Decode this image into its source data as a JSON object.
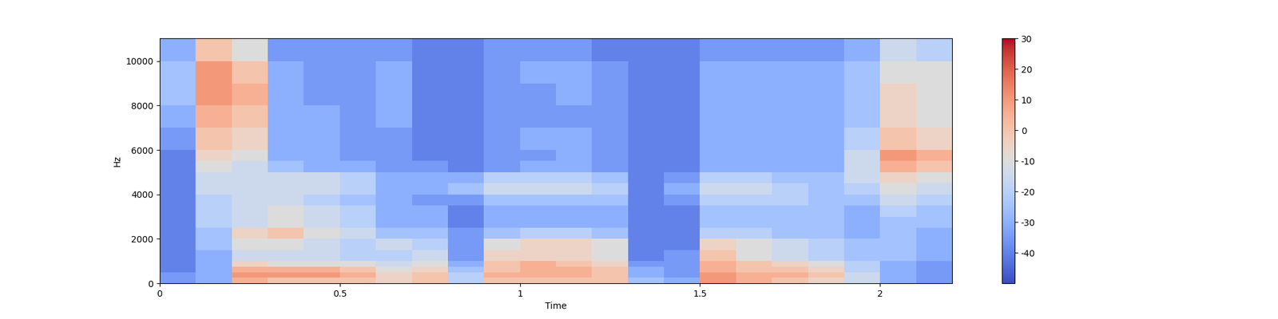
{
  "chart_data": {
    "type": "heatmap",
    "x_label": "Time",
    "y_label": "Hz",
    "xlim": [
      0,
      2.2
    ],
    "xticks": [
      0,
      0.5,
      1,
      1.5,
      2
    ],
    "ylim": [
      0,
      11025
    ],
    "yticks": [
      0,
      2000,
      4000,
      6000,
      8000,
      10000
    ],
    "color": "coolwarm",
    "clim": [
      -50,
      30
    ],
    "cticks": [
      -40,
      -30,
      -20,
      -10,
      0,
      10,
      20,
      30
    ],
    "x_edges": [
      0,
      0.1,
      0.2,
      0.3,
      0.4,
      0.5,
      0.6,
      0.7,
      0.8,
      0.9,
      1.0,
      1.1,
      1.2,
      1.3,
      1.4,
      1.5,
      1.6,
      1.7,
      1.8,
      1.9,
      2.0,
      2.1,
      2.2
    ],
    "y_edges": [
      0,
      250,
      500,
      750,
      1000,
      1500,
      2000,
      2500,
      3000,
      3500,
      4000,
      4500,
      5000,
      5500,
      6000,
      7000,
      8000,
      9000,
      10000,
      11025
    ],
    "cells": [
      [
        -35,
        -35,
        -40,
        -40,
        -40,
        -40,
        -40,
        -40,
        -40,
        -40,
        -40,
        -40,
        -40,
        -40,
        -35,
        -30,
        -25,
        -25,
        -30
      ],
      [
        -30,
        -30,
        -30,
        -30,
        -30,
        -25,
        -25,
        -20,
        -20,
        -20,
        -15,
        -15,
        -10,
        -5,
        0,
        5,
        10,
        10,
        0
      ],
      [
        5,
        10,
        5,
        -5,
        -15,
        -10,
        -5,
        -15,
        -15,
        -15,
        -15,
        -15,
        -15,
        -10,
        -5,
        0,
        5,
        0,
        -10
      ],
      [
        0,
        10,
        5,
        -10,
        -15,
        -10,
        0,
        -10,
        -10,
        -15,
        -15,
        -15,
        -25,
        -30,
        -30,
        -30,
        -30,
        -30,
        -35
      ],
      [
        0,
        10,
        5,
        -10,
        -15,
        -15,
        -10,
        -15,
        -15,
        -20,
        -15,
        -15,
        -30,
        -30,
        -30,
        -30,
        -35,
        -35,
        -35
      ],
      [
        0,
        5,
        0,
        -10,
        -20,
        -20,
        -15,
        -20,
        -20,
        -25,
        -20,
        -20,
        -30,
        -35,
        -35,
        -35,
        -35,
        -35,
        -35
      ],
      [
        -5,
        -5,
        -10,
        -15,
        -20,
        -15,
        -25,
        -30,
        -30,
        -30,
        -30,
        -30,
        -35,
        -35,
        -35,
        -30,
        -30,
        -30,
        -35
      ],
      [
        0,
        0,
        -5,
        -10,
        -15,
        -20,
        -25,
        -30,
        -30,
        -35,
        -30,
        -30,
        -35,
        -40,
        -40,
        -40,
        -40,
        -40,
        -40
      ],
      [
        -20,
        -20,
        -25,
        -30,
        -35,
        -35,
        -35,
        -40,
        -40,
        -35,
        -25,
        -30,
        -40,
        -40,
        -40,
        -40,
        -40,
        -40,
        -40
      ],
      [
        0,
        5,
        0,
        0,
        -5,
        -10,
        -25,
        -30,
        -30,
        -25,
        -15,
        -20,
        -35,
        -35,
        -35,
        -35,
        -35,
        -35,
        -35
      ],
      [
        0,
        5,
        5,
        5,
        -5,
        -5,
        -20,
        -30,
        -30,
        -25,
        -15,
        -20,
        -30,
        -35,
        -30,
        -35,
        -35,
        -30,
        -35
      ],
      [
        0,
        5,
        5,
        0,
        -5,
        -5,
        -20,
        -30,
        -30,
        -25,
        -15,
        -20,
        -30,
        -30,
        -30,
        -35,
        -30,
        -30,
        -35
      ],
      [
        0,
        0,
        0,
        -5,
        -10,
        -10,
        -25,
        -30,
        -30,
        -25,
        -20,
        -25,
        -35,
        -35,
        -35,
        -35,
        -35,
        -35,
        -40
      ],
      [
        -25,
        -30,
        -30,
        -35,
        -40,
        -40,
        -40,
        -40,
        -40,
        -40,
        -40,
        -40,
        -40,
        -40,
        -40,
        -40,
        -40,
        -40,
        -40
      ],
      [
        -30,
        -35,
        -35,
        -35,
        -35,
        -40,
        -40,
        -40,
        -40,
        -35,
        -30,
        -35,
        -40,
        -40,
        -40,
        -40,
        -40,
        -40,
        -40
      ],
      [
        10,
        10,
        5,
        5,
        0,
        -5,
        -20,
        -25,
        -25,
        -20,
        -15,
        -20,
        -30,
        -30,
        -30,
        -30,
        -30,
        -30,
        -35
      ],
      [
        5,
        5,
        0,
        0,
        -10,
        -10,
        -20,
        -25,
        -25,
        -20,
        -15,
        -20,
        -30,
        -30,
        -30,
        -30,
        -30,
        -30,
        -35
      ],
      [
        0,
        5,
        0,
        -5,
        -15,
        -15,
        -25,
        -25,
        -25,
        -20,
        -20,
        -25,
        -30,
        -30,
        -30,
        -30,
        -30,
        -30,
        -35
      ],
      [
        -5,
        0,
        -5,
        -10,
        -20,
        -20,
        -25,
        -25,
        -25,
        -25,
        -25,
        -25,
        -30,
        -30,
        -30,
        -30,
        -30,
        -30,
        -35
      ],
      [
        -15,
        -15,
        -20,
        -20,
        -25,
        -25,
        -30,
        -30,
        -30,
        -25,
        -20,
        -15,
        -15,
        -15,
        -20,
        -25,
        -25,
        -25,
        -30
      ],
      [
        -30,
        -30,
        -30,
        -30,
        -25,
        -25,
        -25,
        -25,
        -20,
        -15,
        -10,
        -5,
        5,
        10,
        0,
        -5,
        -5,
        -10,
        -15
      ],
      [
        -35,
        -35,
        -35,
        -35,
        -30,
        -30,
        -30,
        -25,
        -25,
        -20,
        -15,
        -10,
        0,
        5,
        -5,
        -10,
        -10,
        -10,
        -20
      ]
    ]
  }
}
